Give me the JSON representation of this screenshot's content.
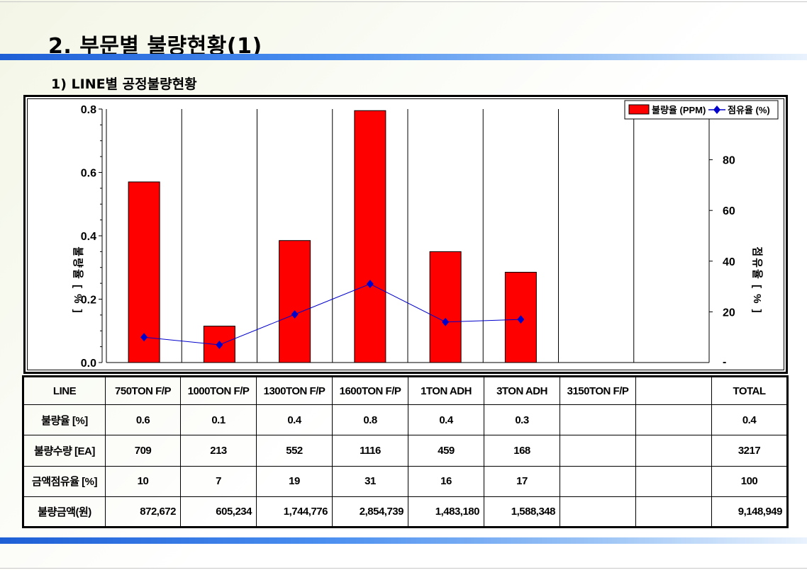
{
  "header": {
    "title": "2. 부문별 불량현황(1)",
    "subtitle": "1) LINE별 공정불량현황"
  },
  "colors": {
    "bar": "#ff0000",
    "line": "#0000cc",
    "accent_bar": "#2f7ae6"
  },
  "chart_data": {
    "type": "bar",
    "categories": [
      "750TON F/P",
      "1000TON F/P",
      "1300TON F/P",
      "1600TON F/P",
      "1TON ADH",
      "3TON ADH",
      "3150TON F/P",
      ""
    ],
    "series": [
      {
        "name": "불량율 (PPM)",
        "type": "bar",
        "axis": "left",
        "values": [
          0.57,
          0.115,
          0.385,
          0.795,
          0.35,
          0.285,
          null,
          null
        ]
      },
      {
        "name": "점유율 (%)",
        "type": "line",
        "axis": "right",
        "values": [
          10,
          7,
          19,
          31,
          16,
          17,
          null,
          null
        ]
      }
    ],
    "ylabel": "불량율 [ % ]",
    "y2label": "점유율 [ % ]",
    "ylim": [
      0,
      0.8
    ],
    "y2lim": [
      0,
      100
    ],
    "yticks": [
      "0.0",
      "0.2",
      "0.4",
      "0.6",
      "0.8"
    ],
    "y2ticks": [
      "20",
      "40",
      "60",
      "80"
    ],
    "y2zero_label": "-",
    "legend_position": "top-right",
    "grid": "vertical"
  },
  "table": {
    "header": [
      "LINE",
      "750TON F/P",
      "1000TON F/P",
      "1300TON F/P",
      "1600TON F/P",
      "1TON ADH",
      "3TON ADH",
      "3150TON F/P",
      "",
      "TOTAL"
    ],
    "rows": [
      [
        "불량율 [%]",
        "0.6",
        "0.1",
        "0.4",
        "0.8",
        "0.4",
        "0.3",
        "",
        "",
        "0.4"
      ],
      [
        "불량수량 [EA]",
        "709",
        "213",
        "552",
        "1116",
        "459",
        "168",
        "",
        "",
        "3217"
      ],
      [
        "금액점유율 [%]",
        "10",
        "7",
        "19",
        "31",
        "16",
        "17",
        "",
        "",
        "100"
      ],
      [
        "불량금액(원)",
        "872,672",
        "605,234",
        "1,744,776",
        "2,854,739",
        "1,483,180",
        "1,588,348",
        "",
        "",
        "9,148,949"
      ]
    ]
  }
}
